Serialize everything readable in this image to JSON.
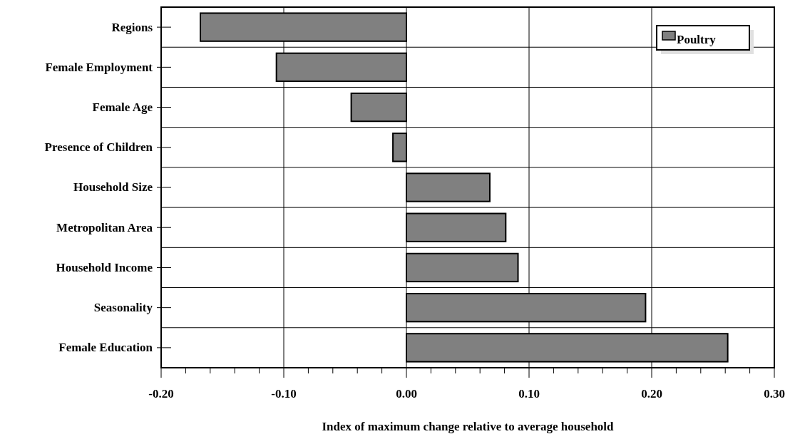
{
  "chart_data": {
    "type": "bar",
    "orientation": "horizontal",
    "xlabel": "Index of maximum change relative to average household",
    "categories": [
      "Regions",
      "Female Employment",
      "Female Age",
      "Presence of Children",
      "Household Size",
      "Metropolitan Area",
      "Household Income",
      "Seasonality",
      "Female Education"
    ],
    "series": [
      {
        "name": "Poultry",
        "color": "#808080",
        "values": [
          -0.168,
          -0.106,
          -0.045,
          -0.011,
          0.068,
          0.081,
          0.091,
          0.195,
          0.262
        ]
      }
    ],
    "xlim": [
      -0.2,
      0.3
    ],
    "xticks": [
      "-0.20",
      {
        "value": -0.18,
        "label": null
      },
      {
        "value": -0.16,
        "label": null
      },
      {
        "value": -0.14,
        "label": null
      },
      {
        "value": -0.12,
        "label": null
      },
      {
        "value": -0.1,
        "label": "-0.10"
      },
      {
        "value": -0.08,
        "label": null
      },
      {
        "value": -0.06,
        "label": null
      },
      {
        "value": -0.04,
        "label": null
      },
      {
        "value": -0.02,
        "label": null
      },
      {
        "value": 0,
        "label": "0.00"
      },
      {
        "value": 0.02,
        "label": null
      },
      {
        "value": 0.04,
        "label": null
      },
      {
        "value": 0.06,
        "label": null
      },
      {
        "value": 0.08,
        "label": null
      },
      {
        "value": 0.1,
        "label": "0.10"
      },
      {
        "value": 0.12,
        "label": null
      },
      {
        "value": 0.14,
        "label": null
      },
      {
        "value": 0.16,
        "label": null
      },
      {
        "value": 0.18,
        "label": null
      },
      {
        "value": 0.2,
        "label": "0.20"
      },
      {
        "value": 0.22,
        "label": null
      },
      {
        "value": 0.24,
        "label": null
      },
      {
        "value": 0.26,
        "label": null
      },
      {
        "value": 0.28,
        "label": null
      },
      {
        "value": 0.3,
        "label": "0.30"
      }
    ],
    "grid": true,
    "legend": "top right"
  }
}
